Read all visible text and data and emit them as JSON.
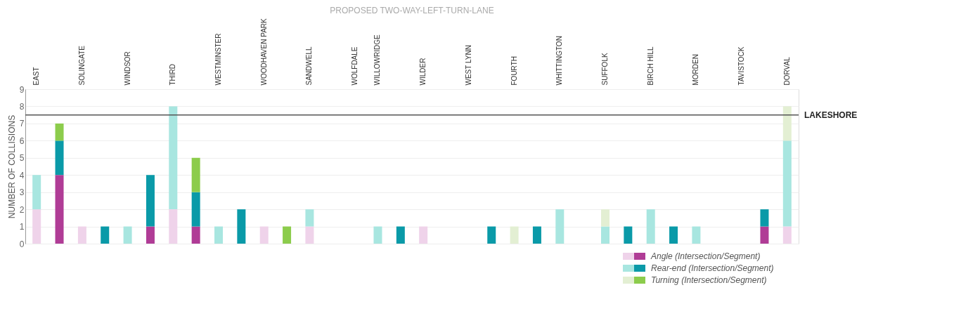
{
  "chart_data": {
    "type": "bar",
    "stacked": true,
    "title": "PROPOSED TWO-WAY-LEFT-TURN-LANE",
    "ylabel": "NUMBER OF COLLISIONS",
    "categories": [
      "EAST",
      null,
      "SOLINGATE",
      null,
      "WINDSOR",
      null,
      "THIRD",
      null,
      "WESTMINSTER",
      null,
      "WOODHAVEN PARK",
      null,
      "SANDWELL",
      null,
      "WOLFDALE",
      "WILLOWRIDGE",
      null,
      "WILDER",
      null,
      "WEST LYNN",
      null,
      "FOURTH",
      null,
      "WHITTINGTON",
      null,
      "SUFFOLK",
      null,
      "BIRCH HILL",
      null,
      "MORDEN",
      null,
      "TAVISTOCK",
      null,
      "DORVAL"
    ],
    "series": [
      {
        "color": "#efd3ea",
        "values": [
          2,
          0,
          1,
          0,
          0,
          0,
          2,
          0,
          0,
          0,
          1,
          0,
          1,
          0,
          0,
          0,
          0,
          1,
          0,
          0,
          0,
          0,
          0,
          0,
          0,
          0,
          0,
          0,
          0,
          0,
          0,
          0,
          0,
          1
        ]
      },
      {
        "name": "Angle (Intersection/Segment)",
        "color": "#b03c96",
        "values": [
          0,
          4,
          0,
          0,
          0,
          1,
          0,
          1,
          0,
          0,
          0,
          0,
          0,
          0,
          0,
          0,
          0,
          0,
          0,
          0,
          0,
          0,
          0,
          0,
          0,
          0,
          0,
          0,
          0,
          0,
          0,
          0,
          1,
          0
        ]
      },
      {
        "color": "#a8e6e0",
        "values": [
          2,
          0,
          0,
          0,
          1,
          0,
          6,
          0,
          1,
          0,
          0,
          0,
          1,
          0,
          0,
          1,
          0,
          0,
          0,
          0,
          0,
          0,
          0,
          2,
          0,
          1,
          0,
          2,
          0,
          1,
          0,
          0,
          0,
          5
        ]
      },
      {
        "name": "Rear-end (Intersection/Segment)",
        "color": "#0a9aa8",
        "values": [
          0,
          2,
          0,
          1,
          0,
          3,
          0,
          2,
          0,
          2,
          0,
          0,
          0,
          0,
          0,
          0,
          1,
          0,
          0,
          0,
          1,
          0,
          1,
          0,
          0,
          0,
          1,
          0,
          1,
          0,
          0,
          0,
          1,
          0
        ]
      },
      {
        "color": "#e3efd3",
        "values": [
          0,
          0,
          0,
          0,
          0,
          0,
          0,
          0,
          0,
          0,
          0,
          0,
          0,
          0,
          0,
          0,
          0,
          0,
          0,
          0,
          0,
          1,
          0,
          0,
          0,
          1,
          0,
          0,
          0,
          0,
          0,
          0,
          0,
          2
        ]
      },
      {
        "name": "Turning (Intersection/Segment)",
        "color": "#8ccc4c",
        "values": [
          0,
          1,
          0,
          0,
          0,
          0,
          0,
          2,
          0,
          0,
          0,
          1,
          0,
          0,
          0,
          0,
          0,
          0,
          0,
          0,
          0,
          0,
          0,
          0,
          0,
          0,
          0,
          0,
          0,
          0,
          0,
          0,
          0,
          0
        ]
      }
    ],
    "ylim": [
      0,
      9
    ],
    "yticks": [
      0,
      1,
      2,
      3,
      4,
      5,
      6,
      7,
      8,
      9
    ],
    "grid": "y",
    "legend": "bottom right",
    "ref_lines": [
      {
        "axis": "y",
        "value": 7.5,
        "label": "LAKESHORE",
        "color": "#555555"
      }
    ]
  }
}
